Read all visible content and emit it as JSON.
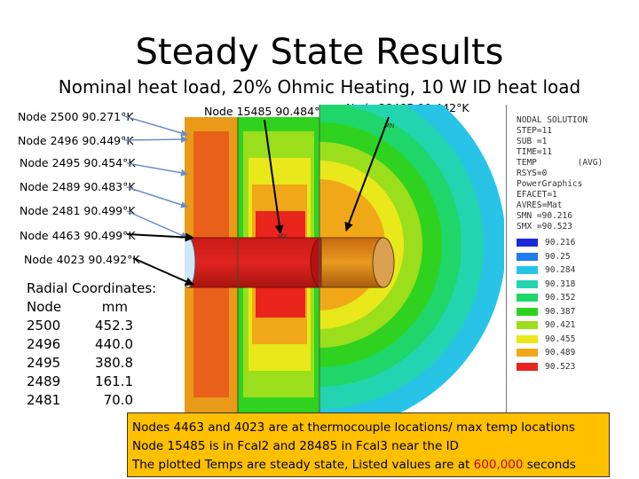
{
  "title": "Steady State Results",
  "subtitle": "Nominal heat load, 20% Ohmic Heating, 10 W ID heat load",
  "nodes_left": [
    {
      "label": "Node 2500  90.271°K"
    },
    {
      "label": "Node 2496  90.449°K"
    },
    {
      "label": "Node 2495  90.454°K"
    },
    {
      "label": "Node 2489  90.483°K"
    },
    {
      "label": "Node 2481  90.499°K"
    },
    {
      "label": "Node 4463  90.499°K"
    },
    {
      "label": "Node 4023  90.492°K"
    }
  ],
  "nodes_top": [
    {
      "label": "Node 15485  90.484°K"
    },
    {
      "label": "Node 28485  90.442°K"
    }
  ],
  "plot_labels": {
    "mx": "MX",
    "mn": "MN"
  },
  "legend": {
    "header": [
      "NODAL SOLUTION",
      "STEP=11",
      "SUB =1",
      "TIME=11",
      "TEMP        (AVG)",
      "RSYS=0",
      "PowerGraphics",
      "EFACET=1",
      "AVRES=Mat",
      "SMN =90.216",
      "SMX =90.523"
    ],
    "scale": [
      {
        "value": "90.216",
        "color": "#1a2bd6"
      },
      {
        "value": "90.25",
        "color": "#1f7bf0"
      },
      {
        "value": "90.284",
        "color": "#27c4e8"
      },
      {
        "value": "90.318",
        "color": "#24d4b0"
      },
      {
        "value": "90.352",
        "color": "#1fd66a"
      },
      {
        "value": "90.387",
        "color": "#2fd21e"
      },
      {
        "value": "90.421",
        "color": "#9bde1c"
      },
      {
        "value": "90.455",
        "color": "#e8e81a"
      },
      {
        "value": "90.489",
        "color": "#f0a818"
      },
      {
        "value": "90.523",
        "color": "#e8241c"
      }
    ]
  },
  "radial": {
    "header_title": "Radial Coordinates:",
    "col_node": "Node",
    "col_mm": "mm",
    "rows": [
      {
        "node": "2500",
        "mm": "452.3"
      },
      {
        "node": "2496",
        "mm": "440.0"
      },
      {
        "node": "2495",
        "mm": "380.8"
      },
      {
        "node": "2489",
        "mm": "161.1"
      },
      {
        "node": "2481",
        "mm": "70.0"
      }
    ]
  },
  "note": {
    "line1": "Nodes 4463 and 4023 are at thermocouple locations/ max temp locations",
    "line2": "Node 15485 is in Fcal2 and 28485 in Fcal3 near the ID",
    "line3_prefix": "The plotted Temps are steady state, Listed values are at ",
    "line3_highlight": "600,000",
    "line3_suffix": " seconds"
  }
}
